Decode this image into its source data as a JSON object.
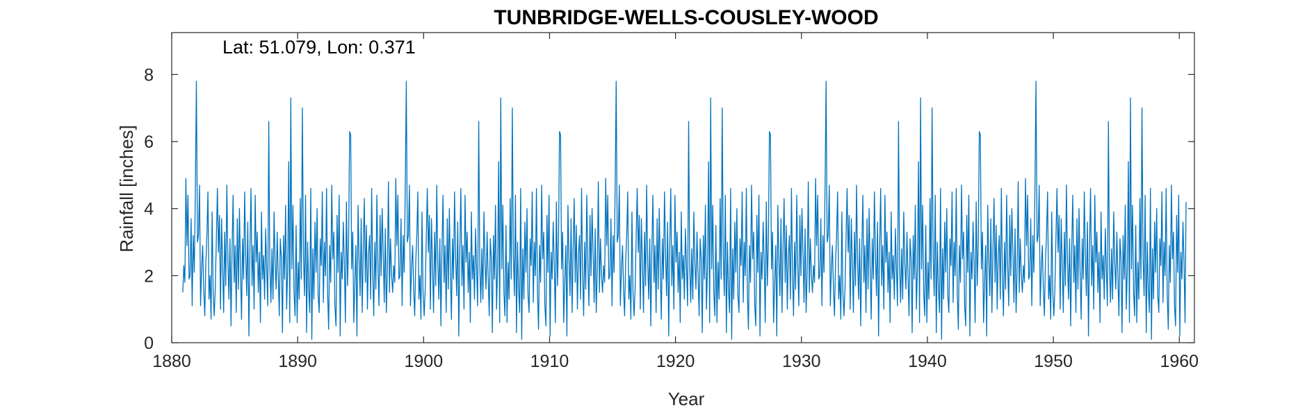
{
  "chart_data": {
    "type": "line",
    "title": "TUNBRIDGE-WELLS-COUSLEY-WOOD",
    "annotation": "Lat: 51.079, Lon: 0.371",
    "xlabel": "Year",
    "ylabel": "Rainfall [inches]",
    "xlim": [
      1880,
      1961.2
    ],
    "ylim": [
      0,
      9.25
    ],
    "xticks": [
      1880,
      1890,
      1900,
      1910,
      1920,
      1930,
      1940,
      1950,
      1960
    ],
    "yticks": [
      0,
      2,
      4,
      6,
      8
    ],
    "grid": false,
    "series_color": "#0072BD",
    "x_start": 1880.875,
    "x_step": 0.08333,
    "series": [
      {
        "values": [
          1.5,
          2.3,
          1.8,
          4.9,
          2.9,
          4.4,
          1.9,
          2.0,
          3.7,
          1.1,
          3.2,
          2.1,
          4.6,
          7.8,
          3.0,
          3.2,
          4.7,
          1.1,
          2.2,
          2.9,
          1.6,
          0.8,
          2.4,
          3.2,
          4.5,
          1.3,
          2.0,
          0.7,
          3.9,
          1.5,
          0.8,
          1.6,
          3.1,
          4.6,
          2.7,
          3.8,
          1.0,
          3.7,
          2.3,
          0.9,
          3.3,
          1.7,
          4.7,
          2.4,
          1.3,
          3.1,
          0.5,
          2.8,
          4.4,
          1.8,
          2.9,
          0.9,
          3.7,
          1.6,
          4.0,
          2.2,
          0.7,
          3.1,
          1.9,
          4.5,
          2.6,
          1.4,
          3.6,
          0.2,
          2.8,
          4.6,
          1.7,
          2.9,
          1.0,
          4.4,
          2.4,
          3.3,
          1.5,
          2.7,
          0.6,
          3.9,
          1.9,
          2.6,
          1.3,
          3.4,
          2.2,
          1.1,
          6.6,
          2.3,
          1.2,
          2.8,
          1.3,
          3.9,
          2.4,
          1.6,
          3.3,
          2.0,
          0.8,
          3.1,
          2.5,
          0.3,
          3.2,
          1.9,
          4.1,
          1.0,
          2.2,
          5.4,
          0.6,
          7.3,
          2.2,
          4.1,
          1.5,
          0.8,
          3.5,
          0.6,
          2.4,
          1.3,
          4.3,
          1.9,
          7.0,
          2.6,
          1.4,
          4.4,
          0.3,
          3.0,
          1.6,
          0.9,
          4.6,
          0.1,
          2.8,
          1.3,
          3.6,
          2.1,
          4.0,
          1.4,
          0.9,
          3.1,
          2.3,
          4.5,
          1.2,
          3.0,
          2.0,
          4.6,
          1.5,
          0.4,
          2.9,
          1.8,
          4.7,
          2.5,
          3.3,
          1.1,
          0.5,
          3.8,
          2.1,
          4.4,
          0.2,
          2.7,
          1.9,
          3.6,
          2.4,
          0.6,
          4.2,
          1.7,
          3.0,
          6.3,
          6.2,
          2.2,
          3.3,
          0.6,
          1.8,
          2.9,
          0.2,
          4.1,
          2.5,
          1.4,
          3.7,
          0.9,
          2.8,
          4.3,
          1.8,
          3.5,
          1.0,
          2.6,
          3.2,
          1.3,
          4.6,
          2.1,
          0.8,
          3.0,
          1.6,
          4.4,
          2.3,
          1.1,
          3.8,
          2.0,
          4.0,
          2.7,
          1.2,
          3.4,
          0.9,
          2.2,
          4.8,
          1.5,
          3.1,
          2.0
        ]
      }
    ]
  }
}
